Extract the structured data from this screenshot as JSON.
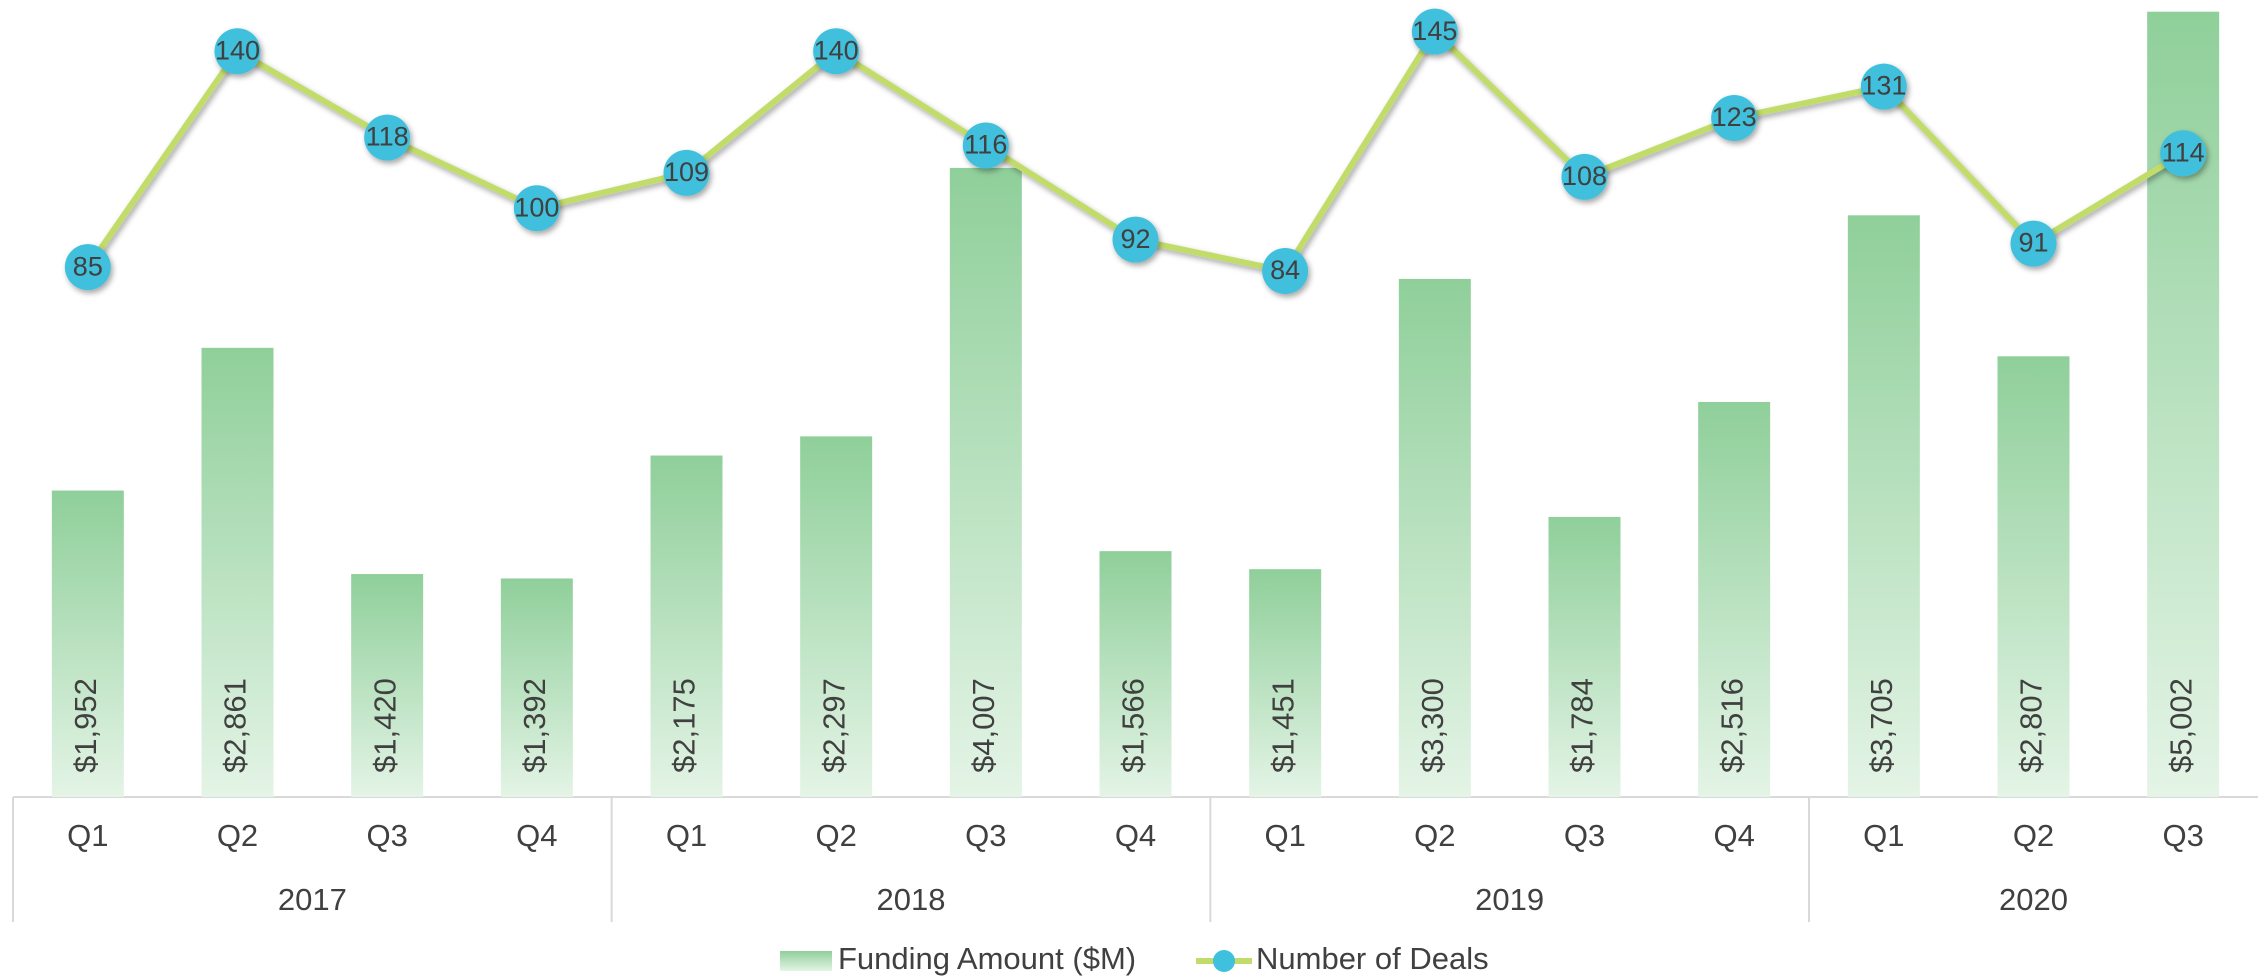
{
  "chart_data": {
    "type": "bar-line",
    "groups": [
      {
        "name": "2017",
        "categories": [
          "Q1",
          "Q2",
          "Q3",
          "Q4"
        ]
      },
      {
        "name": "2018",
        "categories": [
          "Q1",
          "Q2",
          "Q3",
          "Q4"
        ]
      },
      {
        "name": "2019",
        "categories": [
          "Q1",
          "Q2",
          "Q3",
          "Q4"
        ]
      },
      {
        "name": "2020",
        "categories": [
          "Q1",
          "Q2",
          "Q3"
        ]
      }
    ],
    "series": [
      {
        "name": "Funding Amount ($M)",
        "type": "bar",
        "color": "#8fcf9a",
        "values": [
          1952,
          2861,
          1420,
          1392,
          2175,
          2297,
          4007,
          1566,
          1451,
          3300,
          1784,
          2516,
          3705,
          2807,
          5002
        ],
        "value_labels": [
          "$1,952",
          "$2,861",
          "$1,420",
          "$1,392",
          "$2,175",
          "$2,297",
          "$4,007",
          "$1,566",
          "$1,451",
          "$3,300",
          "$1,784",
          "$2,516",
          "$3,705",
          "$2,807",
          "$5,002"
        ]
      },
      {
        "name": "Number of Deals",
        "type": "line",
        "axis": "y2",
        "color": "#c2dc6a",
        "marker_color": "#3fc0dc",
        "values": [
          85,
          140,
          118,
          100,
          109,
          140,
          116,
          92,
          84,
          145,
          108,
          123,
          131,
          91,
          114
        ]
      }
    ],
    "ylim": [
      0,
      5000
    ],
    "y2lim": [
      -50,
      150
    ],
    "legend": "bottom"
  }
}
